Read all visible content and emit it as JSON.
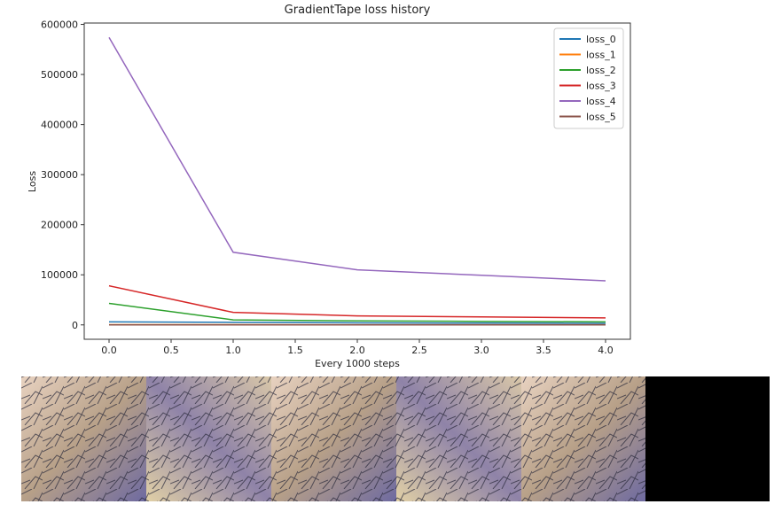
{
  "chart_data": {
    "type": "line",
    "title": "GradientTape loss history",
    "xlabel": "Every 1000 steps",
    "ylabel": "Loss",
    "x": [
      0,
      1,
      2,
      3,
      4
    ],
    "series": [
      {
        "name": "loss_0",
        "color": "#1f77b4",
        "values": [
          6000,
          5000,
          4000,
          3500,
          3000
        ]
      },
      {
        "name": "loss_1",
        "color": "#ff7f0e",
        "values": [
          500,
          400,
          350,
          300,
          300
        ]
      },
      {
        "name": "loss_2",
        "color": "#2ca02c",
        "values": [
          43000,
          10000,
          8000,
          7000,
          6000
        ]
      },
      {
        "name": "loss_3",
        "color": "#d62728",
        "values": [
          78000,
          25000,
          18000,
          16000,
          14000
        ]
      },
      {
        "name": "loss_4",
        "color": "#9467bd",
        "values": [
          574000,
          145000,
          110000,
          99000,
          88000
        ]
      },
      {
        "name": "loss_5",
        "color": "#8c564b",
        "values": [
          100,
          100,
          100,
          100,
          100
        ]
      }
    ],
    "xlim": [
      -0.2,
      4.2
    ],
    "xticks": [
      {
        "value": 0,
        "label": "0.0"
      },
      {
        "value": 0.5,
        "label": "0.5"
      },
      {
        "value": 1,
        "label": "1.0"
      },
      {
        "value": 1.5,
        "label": "1.5"
      },
      {
        "value": 2,
        "label": "2.0"
      },
      {
        "value": 2.5,
        "label": "2.5"
      },
      {
        "value": 3,
        "label": "3.0"
      },
      {
        "value": 3.5,
        "label": "3.5"
      },
      {
        "value": 4,
        "label": "4.0"
      }
    ],
    "ylim": [
      -28700,
      602700
    ],
    "yticks": [
      0,
      100000,
      200000,
      300000,
      400000,
      500000,
      600000
    ],
    "legend": "upper right"
  }
}
